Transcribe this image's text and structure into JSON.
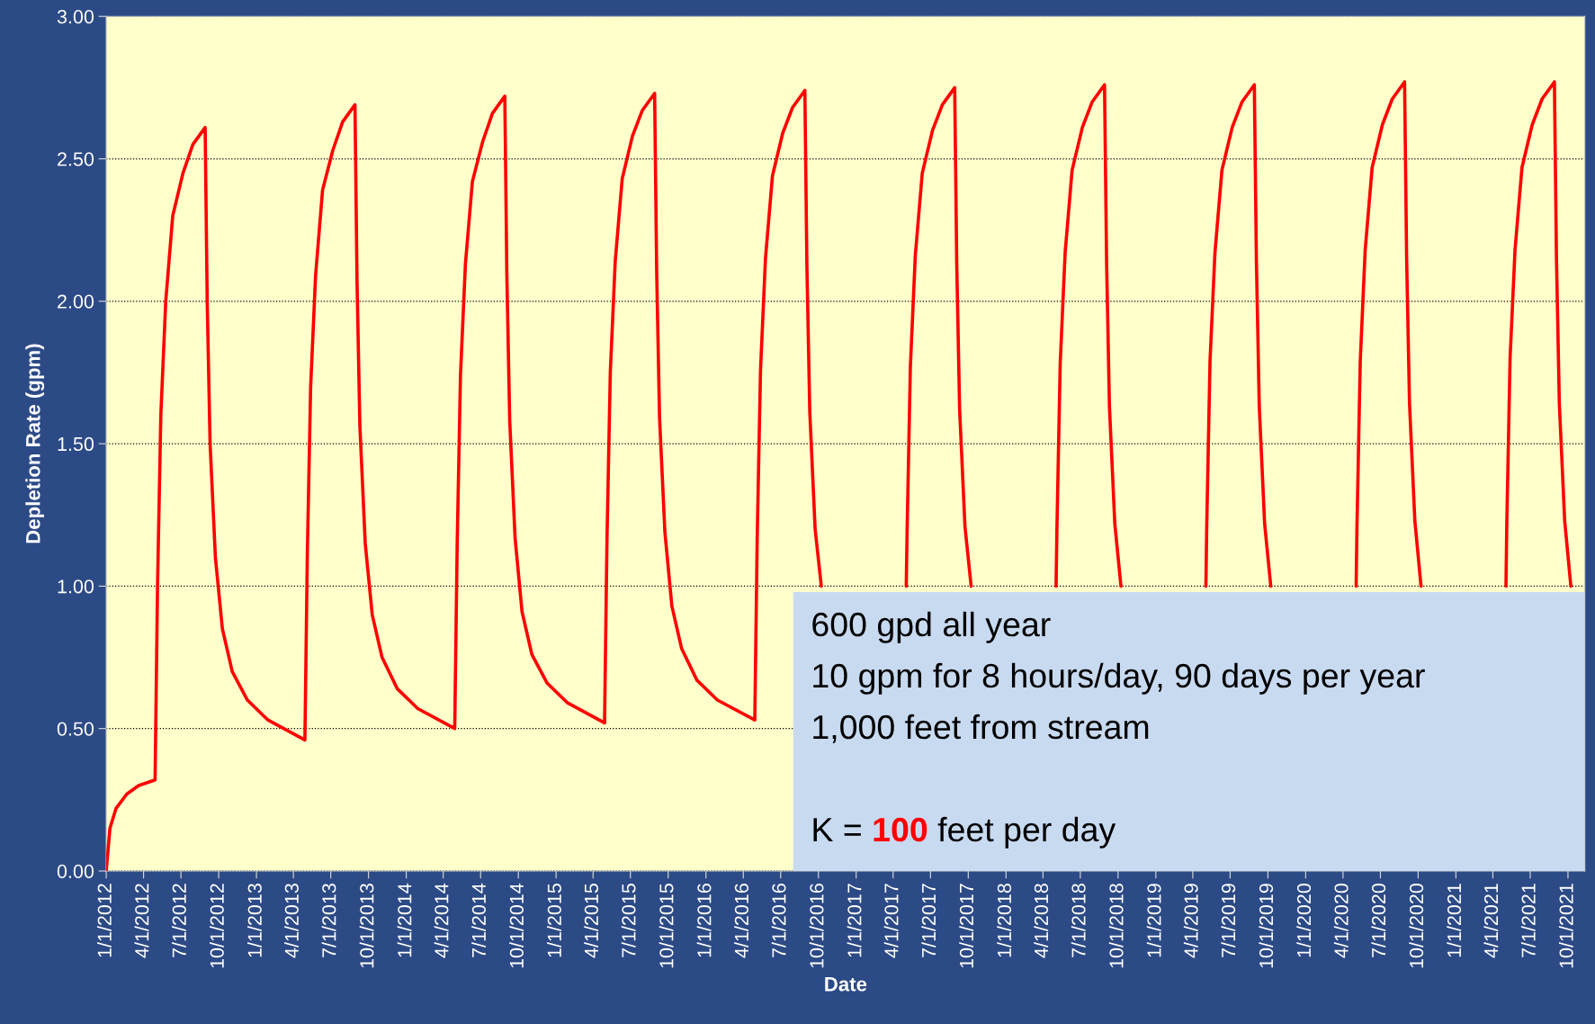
{
  "chart_data": {
    "type": "line",
    "xlabel": "Date",
    "ylabel": "Depletion Rate (gpm)",
    "xlim": [
      "2012-01-01",
      "2021-11-11"
    ],
    "ylim": [
      0,
      3
    ],
    "yticks": [
      {
        "value": 0,
        "label": "0.00"
      },
      {
        "value": 0.5,
        "label": "0.50"
      },
      {
        "value": 1,
        "label": "1.00"
      },
      {
        "value": 1.5,
        "label": "1.50"
      },
      {
        "value": 2,
        "label": "2.00"
      },
      {
        "value": 2.5,
        "label": "2.50"
      },
      {
        "value": 3,
        "label": "3.00"
      }
    ],
    "xticks": [
      {
        "value": "2012-01-01",
        "label": "1/1/2012"
      },
      {
        "value": "2012-04-01",
        "label": "4/1/2012"
      },
      {
        "value": "2012-07-01",
        "label": "7/1/2012"
      },
      {
        "value": "2012-10-01",
        "label": "10/1/2012"
      },
      {
        "value": "2013-01-01",
        "label": "1/1/2013"
      },
      {
        "value": "2013-04-01",
        "label": "4/1/2013"
      },
      {
        "value": "2013-07-01",
        "label": "7/1/2013"
      },
      {
        "value": "2013-10-01",
        "label": "10/1/2013"
      },
      {
        "value": "2014-01-01",
        "label": "1/1/2014"
      },
      {
        "value": "2014-04-01",
        "label": "4/1/2014"
      },
      {
        "value": "2014-07-01",
        "label": "7/1/2014"
      },
      {
        "value": "2014-10-01",
        "label": "10/1/2014"
      },
      {
        "value": "2015-01-01",
        "label": "1/1/2015"
      },
      {
        "value": "2015-04-01",
        "label": "4/1/2015"
      },
      {
        "value": "2015-07-01",
        "label": "7/1/2015"
      },
      {
        "value": "2015-10-01",
        "label": "10/1/2015"
      },
      {
        "value": "2016-01-01",
        "label": "1/1/2016"
      },
      {
        "value": "2016-04-01",
        "label": "4/1/2016"
      },
      {
        "value": "2016-07-01",
        "label": "7/1/2016"
      },
      {
        "value": "2016-10-01",
        "label": "10/1/2016"
      },
      {
        "value": "2017-01-01",
        "label": "1/1/2017"
      },
      {
        "value": "2017-04-01",
        "label": "4/1/2017"
      },
      {
        "value": "2017-07-01",
        "label": "7/1/2017"
      },
      {
        "value": "2017-10-01",
        "label": "10/1/2017"
      },
      {
        "value": "2018-01-01",
        "label": "1/1/2018"
      },
      {
        "value": "2018-04-01",
        "label": "4/1/2018"
      },
      {
        "value": "2018-07-01",
        "label": "7/1/2018"
      },
      {
        "value": "2018-10-01",
        "label": "10/1/2018"
      },
      {
        "value": "2019-01-01",
        "label": "1/1/2019"
      },
      {
        "value": "2019-04-01",
        "label": "4/1/2019"
      },
      {
        "value": "2019-07-01",
        "label": "7/1/2019"
      },
      {
        "value": "2019-10-01",
        "label": "10/1/2019"
      },
      {
        "value": "2020-01-01",
        "label": "1/1/2020"
      },
      {
        "value": "2020-04-01",
        "label": "4/1/2020"
      },
      {
        "value": "2020-07-01",
        "label": "7/1/2020"
      },
      {
        "value": "2020-10-01",
        "label": "10/1/2020"
      },
      {
        "value": "2021-01-01",
        "label": "1/1/2021"
      },
      {
        "value": "2021-04-01",
        "label": "4/1/2021"
      },
      {
        "value": "2021-07-01",
        "label": "7/1/2021"
      },
      {
        "value": "2021-10-01",
        "label": "10/1/2021"
      }
    ],
    "grid": "y",
    "line_style": "solid",
    "marker": "none",
    "annotations": [
      "600 gpd all year",
      "10 gpm for 8 hours/day, 90 days per year",
      "1,000 feet from stream",
      "K = 100 feet per day"
    ],
    "series": [
      {
        "color": "#ff0000",
        "x": [
          "2012-01-01",
          "2012-01-10",
          "2012-01-25",
          "2012-02-20",
          "2012-03-20",
          "2012-04-29",
          "2012-05-05",
          "2012-05-13",
          "2012-05-25",
          "2012-06-11",
          "2012-07-06",
          "2012-07-30",
          "2012-08-29",
          "2012-09-03",
          "2012-09-10",
          "2012-09-23",
          "2012-10-10",
          "2012-11-03",
          "2012-12-10",
          "2013-01-29",
          "2013-04-29",
          "2013-05-05",
          "2013-05-13",
          "2013-05-25",
          "2013-06-11",
          "2013-07-06",
          "2013-07-30",
          "2013-08-29",
          "2013-09-03",
          "2013-09-10",
          "2013-09-23",
          "2013-10-10",
          "2013-11-03",
          "2013-12-10",
          "2014-01-29",
          "2014-04-29",
          "2014-05-05",
          "2014-05-13",
          "2014-05-25",
          "2014-06-11",
          "2014-07-06",
          "2014-07-30",
          "2014-08-29",
          "2014-09-03",
          "2014-09-10",
          "2014-09-23",
          "2014-10-10",
          "2014-11-03",
          "2014-12-10",
          "2015-01-29",
          "2015-04-29",
          "2015-05-05",
          "2015-05-13",
          "2015-05-25",
          "2015-06-11",
          "2015-07-06",
          "2015-07-30",
          "2015-08-29",
          "2015-09-03",
          "2015-09-10",
          "2015-09-23",
          "2015-10-10",
          "2015-11-03",
          "2015-12-10",
          "2016-01-29",
          "2016-04-29",
          "2016-05-05",
          "2016-05-13",
          "2016-05-25",
          "2016-06-11",
          "2016-07-06",
          "2016-07-30",
          "2016-08-29",
          "2016-09-03",
          "2016-09-10",
          "2016-09-23",
          "2016-10-08",
          "2016-11-03",
          "2016-12-10",
          "2017-01-29",
          "2017-04-29",
          "2017-05-03",
          "2017-05-05",
          "2017-05-13",
          "2017-05-25",
          "2017-06-11",
          "2017-07-06",
          "2017-07-30",
          "2017-08-29",
          "2017-09-03",
          "2017-09-10",
          "2017-09-23",
          "2017-10-08",
          "2017-11-03",
          "2017-12-10",
          "2018-01-29",
          "2018-04-29",
          "2018-05-03",
          "2018-05-05",
          "2018-05-13",
          "2018-05-25",
          "2018-06-11",
          "2018-07-06",
          "2018-07-30",
          "2018-08-29",
          "2018-09-03",
          "2018-09-10",
          "2018-09-23",
          "2018-10-08",
          "2018-11-03",
          "2018-12-10",
          "2019-01-29",
          "2019-04-29",
          "2019-05-03",
          "2019-05-05",
          "2019-05-13",
          "2019-05-25",
          "2019-06-11",
          "2019-07-06",
          "2019-07-30",
          "2019-08-29",
          "2019-09-03",
          "2019-09-10",
          "2019-09-23",
          "2019-10-08",
          "2019-11-03",
          "2019-12-10",
          "2020-01-29",
          "2020-04-29",
          "2020-05-03",
          "2020-05-05",
          "2020-05-13",
          "2020-05-25",
          "2020-06-11",
          "2020-07-06",
          "2020-07-30",
          "2020-08-29",
          "2020-09-03",
          "2020-09-10",
          "2020-09-23",
          "2020-10-08",
          "2020-11-03",
          "2020-12-10",
          "2021-01-29",
          "2021-04-29",
          "2021-05-03",
          "2021-05-05",
          "2021-05-13",
          "2021-05-25",
          "2021-06-11",
          "2021-07-06",
          "2021-07-30",
          "2021-08-29",
          "2021-09-03",
          "2021-09-10",
          "2021-09-23",
          "2021-10-08"
        ],
        "values": [
          0,
          0.15,
          0.22,
          0.27,
          0.3,
          0.32,
          1.0,
          1.6,
          2.0,
          2.3,
          2.45,
          2.55,
          2.61,
          2.0,
          1.5,
          1.1,
          0.85,
          0.7,
          0.6,
          0.53,
          0.46,
          1.12,
          1.7,
          2.09,
          2.39,
          2.53,
          2.63,
          2.69,
          2.07,
          1.56,
          1.15,
          0.9,
          0.75,
          0.64,
          0.57,
          0.5,
          1.15,
          1.74,
          2.13,
          2.42,
          2.56,
          2.66,
          2.72,
          2.09,
          1.58,
          1.17,
          0.91,
          0.76,
          0.66,
          0.59,
          0.52,
          1.17,
          1.75,
          2.14,
          2.43,
          2.58,
          2.67,
          2.73,
          2.1,
          1.59,
          1.19,
          0.93,
          0.78,
          0.67,
          0.6,
          0.53,
          1.18,
          1.76,
          2.15,
          2.44,
          2.59,
          2.68,
          2.74,
          2.12,
          1.61,
          1.2,
          1.0,
          null,
          null,
          null,
          null,
          1.0,
          1.19,
          1.77,
          2.16,
          2.45,
          2.6,
          2.69,
          2.75,
          2.13,
          1.62,
          1.21,
          1.0,
          null,
          null,
          null,
          null,
          1.0,
          1.2,
          1.78,
          2.17,
          2.46,
          2.61,
          2.7,
          2.76,
          2.14,
          1.63,
          1.22,
          1.0,
          null,
          null,
          null,
          null,
          1.0,
          1.21,
          1.79,
          2.17,
          2.46,
          2.61,
          2.7,
          2.76,
          2.14,
          1.63,
          1.22,
          1.0,
          null,
          null,
          null,
          null,
          1.0,
          1.21,
          1.79,
          2.18,
          2.47,
          2.62,
          2.71,
          2.77,
          2.15,
          1.64,
          1.23,
          1.0,
          null,
          null,
          null,
          null,
          1.0,
          1.22,
          1.8,
          2.18,
          2.47,
          2.62,
          2.71,
          2.77,
          2.15,
          1.64,
          1.23,
          1.0
        ]
      }
    ]
  }
}
